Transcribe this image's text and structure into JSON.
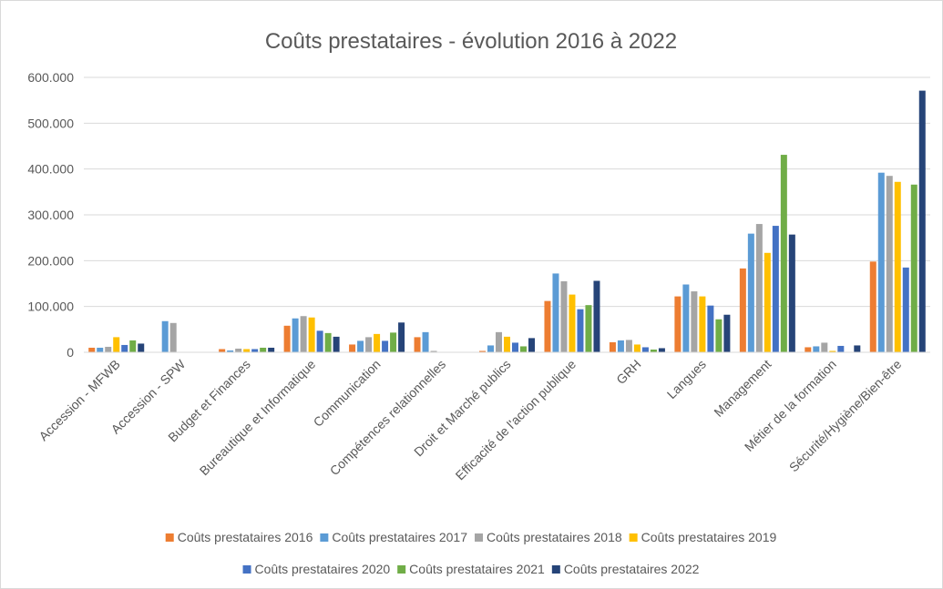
{
  "chart_data": {
    "type": "bar",
    "title": "Coûts prestataires - évolution 2016 à 2022",
    "xlabel": "",
    "ylabel": "",
    "ylim": [
      0,
      600000
    ],
    "yticks": [
      "0",
      "100.000",
      "200.000",
      "300.000",
      "400.000",
      "500.000",
      "600.000"
    ],
    "grid": true,
    "legend_position": "bottom",
    "categories": [
      "Accession - MFWB",
      "Accession - SPW",
      "Budget et Finances",
      "Bureautique et Informatique",
      "Communication",
      "Compétences relationnelles",
      "Droit et Marché publics",
      "Efficacité de l'action publique",
      "GRH",
      "Langues",
      "Management",
      "Métier de la formation",
      "Sécurité/Hygiène/Bien-être"
    ],
    "series": [
      {
        "name": "Coûts prestataires 2016",
        "color": "#ED7D31",
        "values": [
          10000,
          0,
          7000,
          58000,
          17000,
          33000,
          3000,
          112000,
          22000,
          122000,
          183000,
          11000,
          198000
        ]
      },
      {
        "name": "Coûts prestataires 2017",
        "color": "#5B9BD5",
        "values": [
          10000,
          68000,
          4000,
          74000,
          25000,
          44000,
          15000,
          172000,
          26000,
          148000,
          259000,
          13000,
          392000
        ]
      },
      {
        "name": "Coûts prestataires 2018",
        "color": "#A5A5A5",
        "values": [
          12000,
          64000,
          8000,
          79000,
          33000,
          3000,
          44000,
          155000,
          27000,
          133000,
          280000,
          21000,
          385000
        ]
      },
      {
        "name": "Coûts prestataires 2019",
        "color": "#FFC000",
        "values": [
          33000,
          0,
          7000,
          76000,
          40000,
          0,
          34000,
          126000,
          17000,
          122000,
          217000,
          3000,
          372000
        ]
      },
      {
        "name": "Coûts prestataires 2020",
        "color": "#4472C4",
        "values": [
          16000,
          0,
          7000,
          47000,
          25000,
          0,
          21000,
          94000,
          11000,
          102000,
          276000,
          14000,
          185000
        ]
      },
      {
        "name": "Coûts prestataires 2021",
        "color": "#70AD47",
        "values": [
          26000,
          0,
          10000,
          42000,
          43000,
          0,
          13000,
          103000,
          6000,
          72000,
          431000,
          0,
          366000
        ]
      },
      {
        "name": "Coûts prestataires 2022",
        "color": "#264478",
        "values": [
          19000,
          0,
          10000,
          34000,
          65000,
          0,
          31000,
          156000,
          9000,
          82000,
          257000,
          15000,
          571000
        ]
      }
    ]
  }
}
